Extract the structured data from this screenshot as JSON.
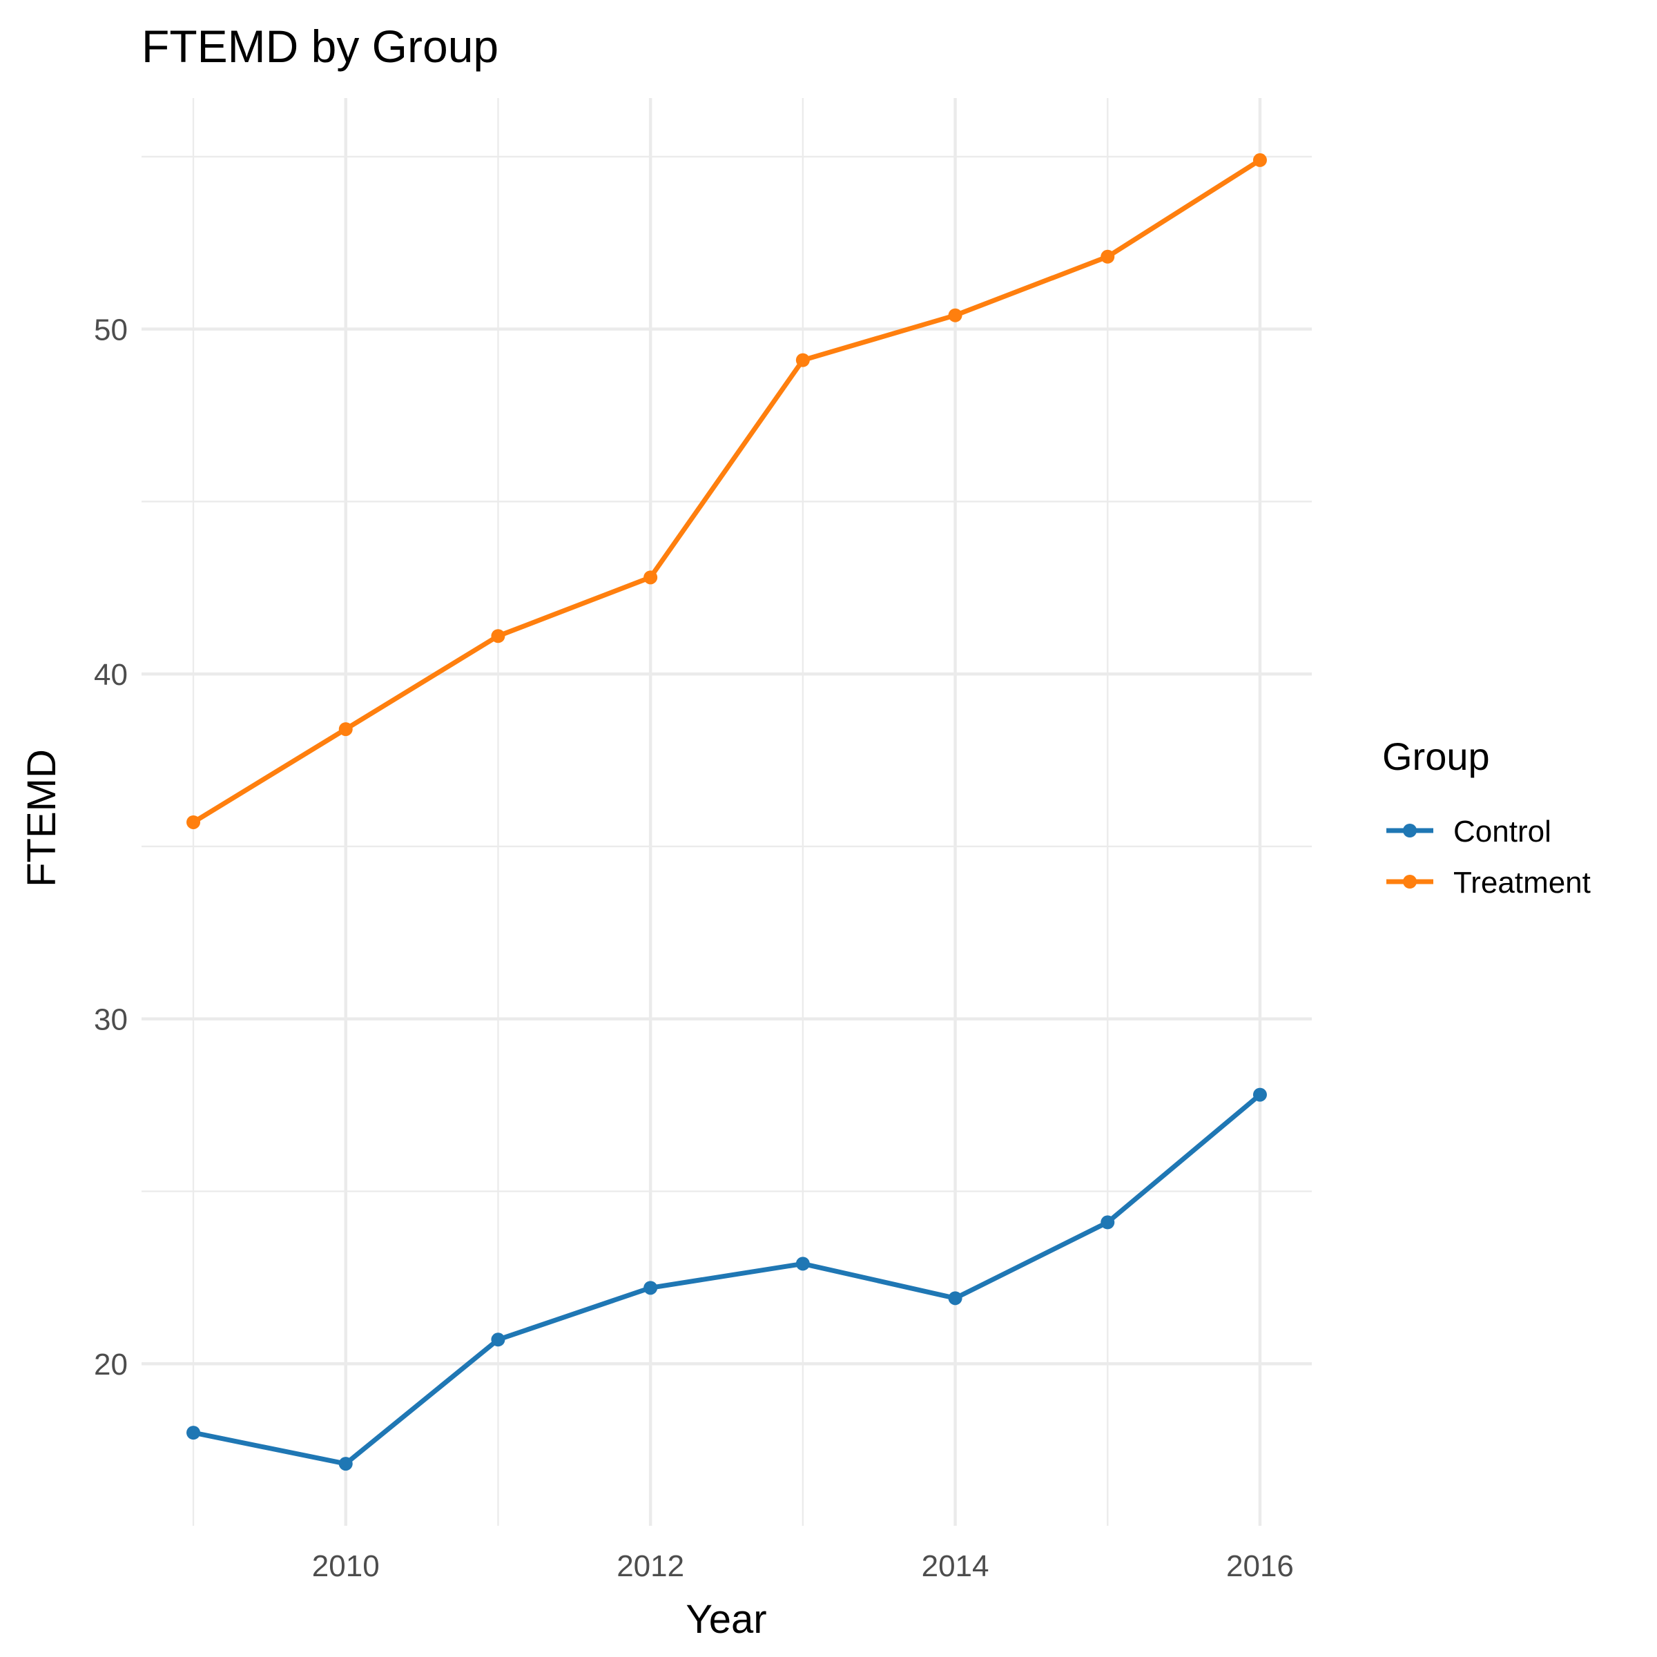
{
  "chart_data": {
    "type": "line",
    "title": "FTEMD by Group",
    "xlabel": "Year",
    "ylabel": "FTEMD",
    "x": [
      2009,
      2010,
      2011,
      2012,
      2013,
      2014,
      2015,
      2016
    ],
    "xlim": [
      2008.66,
      2016.34
    ],
    "ylim": [
      15.3,
      56.7
    ],
    "x_ticks": [
      2010,
      2012,
      2014,
      2016
    ],
    "x_tick_labels": [
      "2010",
      "2012",
      "2014",
      "2016"
    ],
    "x_minor_ticks": [
      2009,
      2011,
      2013,
      2015
    ],
    "y_ticks": [
      20,
      30,
      40,
      50
    ],
    "y_tick_labels": [
      "20",
      "30",
      "40",
      "50"
    ],
    "y_minor_ticks": [
      25,
      35,
      45,
      55
    ],
    "grid": true,
    "legend": {
      "title": "Group",
      "position": "right"
    },
    "series": [
      {
        "name": "Control",
        "color": "#1f77b4",
        "values": [
          18.0,
          17.1,
          20.7,
          22.2,
          22.9,
          21.9,
          24.1,
          27.8
        ]
      },
      {
        "name": "Treatment",
        "color": "#ff7f0e",
        "values": [
          35.7,
          38.4,
          41.1,
          42.8,
          49.1,
          50.4,
          52.1,
          54.9
        ]
      }
    ]
  }
}
